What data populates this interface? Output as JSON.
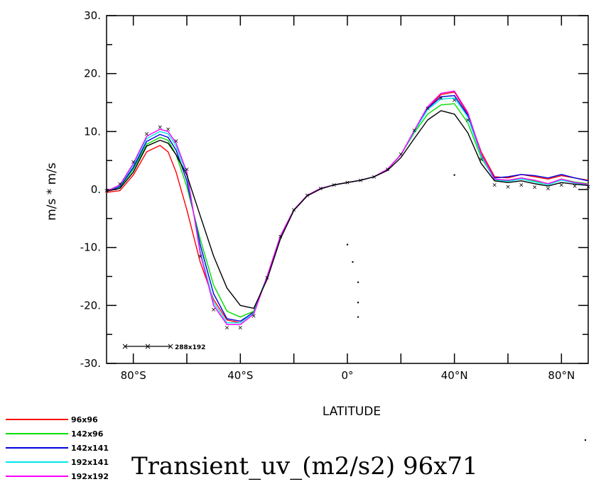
{
  "chart_data": {
    "type": "line",
    "title": "Transient_uv_(m2/s2) 96x71",
    "xlabel": "LATITUDE",
    "ylabel": "m/s * m/s",
    "xlim": [
      -90,
      90
    ],
    "ylim": [
      -30,
      30
    ],
    "x_ticks": [
      {
        "value": -80,
        "label": "80°S"
      },
      {
        "value": -40,
        "label": "40°S"
      },
      {
        "value": 0,
        "label": "0°"
      },
      {
        "value": 40,
        "label": "40°N"
      },
      {
        "value": 80,
        "label": "80°N"
      }
    ],
    "y_ticks": [
      {
        "value": 30,
        "label": "30."
      },
      {
        "value": 20,
        "label": "20."
      },
      {
        "value": 10,
        "label": "10."
      },
      {
        "value": 0,
        "label": "0."
      },
      {
        "value": -10,
        "label": "-10."
      },
      {
        "value": -20,
        "label": "-20."
      },
      {
        "value": -30,
        "label": "-30."
      }
    ],
    "x": [
      -90,
      -85,
      -80,
      -75,
      -70,
      -67,
      -64,
      -60,
      -55,
      -50,
      -45,
      -40,
      -35,
      -30,
      -25,
      -20,
      -15,
      -10,
      -5,
      0,
      5,
      10,
      15,
      20,
      25,
      30,
      35,
      40,
      45,
      50,
      55,
      60,
      65,
      70,
      75,
      80,
      85,
      90
    ],
    "series": [
      {
        "name": "96x96",
        "color": "#ff0000",
        "style": "solid",
        "values": [
          -0.5,
          -0.2,
          2.5,
          6.5,
          7.6,
          6.5,
          3.0,
          -3.5,
          -12.5,
          -19.0,
          -22.5,
          -23.0,
          -21.0,
          -15.0,
          -8.0,
          -3.5,
          -1.0,
          0.2,
          0.8,
          1.2,
          1.6,
          2.2,
          3.5,
          6.0,
          10.0,
          14.0,
          16.4,
          16.8,
          13.0,
          6.5,
          2.2,
          2.0,
          2.6,
          2.2,
          1.8,
          2.4,
          2.0,
          1.6
        ]
      },
      {
        "name": "142x96",
        "color": "#00dd00",
        "style": "solid",
        "values": [
          -0.3,
          0.4,
          3.5,
          7.8,
          9.0,
          8.5,
          6.0,
          0.5,
          -8.5,
          -16.5,
          -21.0,
          -22.0,
          -21.0,
          -15.0,
          -8.0,
          -3.5,
          -1.0,
          0.2,
          0.8,
          1.2,
          1.6,
          2.2,
          3.5,
          6.0,
          9.8,
          13.0,
          14.6,
          14.8,
          11.5,
          5.5,
          1.8,
          1.5,
          2.0,
          1.5,
          1.0,
          1.8,
          1.3,
          1.0
        ]
      },
      {
        "name": "142x141",
        "color": "#0000dd",
        "style": "solid",
        "values": [
          -0.3,
          0.5,
          3.8,
          8.3,
          9.5,
          9.0,
          6.8,
          1.5,
          -9.5,
          -18.0,
          -22.3,
          -22.7,
          -21.2,
          -15.0,
          -8.0,
          -3.5,
          -1.0,
          0.2,
          0.8,
          1.2,
          1.6,
          2.2,
          3.5,
          6.0,
          10.0,
          14.0,
          16.0,
          16.2,
          12.8,
          6.0,
          2.0,
          2.2,
          2.6,
          2.4,
          2.0,
          2.6,
          2.0,
          1.5
        ]
      },
      {
        "name": "192x141",
        "color": "#00e5ee",
        "style": "solid",
        "values": [
          -0.3,
          0.7,
          4.2,
          8.8,
          10.0,
          9.6,
          7.5,
          2.5,
          -10.5,
          -19.5,
          -23.0,
          -23.0,
          -21.3,
          -15.0,
          -8.0,
          -3.5,
          -1.0,
          0.2,
          0.8,
          1.2,
          1.6,
          2.2,
          3.5,
          6.0,
          10.0,
          13.8,
          15.6,
          15.8,
          12.5,
          5.8,
          1.6,
          1.4,
          1.8,
          1.3,
          0.8,
          1.6,
          1.1,
          0.8
        ]
      },
      {
        "name": "192x192",
        "color": "#ff00ff",
        "style": "solid",
        "values": [
          -0.3,
          0.8,
          4.5,
          9.2,
          10.4,
          10.0,
          8.0,
          3.0,
          -11.0,
          -20.0,
          -23.3,
          -23.3,
          -21.5,
          -15.0,
          -8.0,
          -3.5,
          -1.0,
          0.2,
          0.8,
          1.2,
          1.6,
          2.2,
          3.5,
          6.0,
          10.2,
          14.3,
          16.6,
          17.0,
          13.3,
          6.2,
          1.8,
          1.6,
          2.0,
          1.6,
          1.0,
          1.8,
          1.2,
          0.9
        ]
      },
      {
        "name": "",
        "color": "#000000",
        "style": "solid",
        "values": [
          -0.3,
          0.2,
          3.0,
          7.5,
          8.5,
          8.0,
          6.0,
          2.5,
          -4.5,
          -11.5,
          -17.0,
          -20.0,
          -20.5,
          -15.5,
          -8.5,
          -3.6,
          -1.1,
          0.1,
          0.8,
          1.2,
          1.6,
          2.2,
          3.3,
          5.5,
          8.8,
          12.0,
          13.6,
          13.0,
          9.8,
          4.5,
          1.5,
          1.2,
          1.5,
          1.0,
          0.6,
          1.2,
          0.9,
          0.7
        ]
      },
      {
        "name": "288x192",
        "color": "#000000",
        "style": "x-marker",
        "values": [
          -0.2,
          1.0,
          4.8,
          9.6,
          10.8,
          10.4,
          8.4,
          3.5,
          -11.5,
          -20.7,
          -23.8,
          -23.8,
          -21.8,
          -15.2,
          -8.1,
          -3.5,
          -1.0,
          0.2,
          0.8,
          1.2,
          1.6,
          2.2,
          3.5,
          6.1,
          10.2,
          14.0,
          15.8,
          15.4,
          12.0,
          5.2,
          0.8,
          0.5,
          0.8,
          0.4,
          0.2,
          0.8,
          0.6,
          0.5
        ]
      }
    ],
    "stray_points": [
      {
        "x": 0,
        "y": -9.5
      },
      {
        "x": 2,
        "y": -12.5
      },
      {
        "x": 4,
        "y": -16
      },
      {
        "x": 4,
        "y": -19.5
      },
      {
        "x": 4,
        "y": -22
      },
      {
        "x": 40,
        "y": 2.5
      }
    ],
    "legend": {
      "placement": "bottom-left",
      "entries": [
        {
          "label": "96x96",
          "color": "#ff0000"
        },
        {
          "label": "142x96",
          "color": "#00dd00"
        },
        {
          "label": "142x141",
          "color": "#0000dd"
        },
        {
          "label": "192x141",
          "color": "#00e5ee"
        },
        {
          "label": "192x192",
          "color": "#ff00ff"
        }
      ],
      "inner_entry": {
        "label": "288x192",
        "color": "#000000"
      }
    }
  }
}
